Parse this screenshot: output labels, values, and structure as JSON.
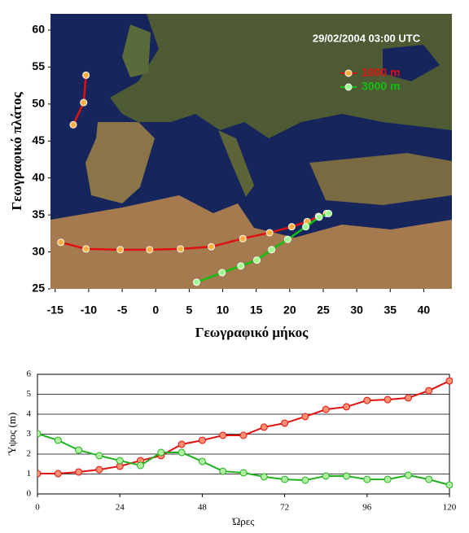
{
  "chart_data": [
    {
      "type": "line",
      "annotation": "29/02/2004 03:00 UTC",
      "xlabel": "Γεωγραφικό μήκος",
      "ylabel": "Γεωγραφικό πλάτος",
      "xlim": [
        -15.7,
        44.2
      ],
      "ylim": [
        25,
        62.2
      ],
      "xticks": [
        -15,
        -10,
        -5,
        0,
        5,
        10,
        15,
        20,
        25,
        30,
        35,
        40
      ],
      "yticks": [
        25,
        30,
        35,
        40,
        45,
        50,
        55,
        60
      ],
      "grid": false,
      "legend": "upper right",
      "series": [
        {
          "name": "1000 m",
          "color": "#e01010",
          "marker_color": "#ffb040",
          "x": [
            -10.4,
            -10.75,
            -12.3,
            null,
            -14.15,
            -10.4,
            -5.3,
            -0.9,
            3.7,
            8.3,
            13.0,
            17.0,
            20.3,
            22.6,
            24.3,
            25.5
          ],
          "values": [
            53.9,
            50.2,
            47.2,
            null,
            31.3,
            30.4,
            30.3,
            30.3,
            30.4,
            30.7,
            31.8,
            32.6,
            33.4,
            34.1,
            34.8,
            35.2
          ]
        },
        {
          "name": "3000 m",
          "color": "#10c010",
          "marker_color": "#a0ff90",
          "x": [
            25.8,
            24.4,
            22.4,
            19.7,
            17.3,
            15.1,
            12.7,
            9.9,
            6.1
          ],
          "values": [
            35.2,
            34.7,
            33.4,
            31.7,
            30.3,
            28.9,
            28.1,
            27.2,
            25.9
          ]
        }
      ]
    },
    {
      "type": "line",
      "xlabel": "Ώρες",
      "ylabel": "Ύψος (m)",
      "xlim": [
        0,
        120
      ],
      "ylim": [
        0,
        6
      ],
      "xticks": [
        0,
        24,
        48,
        72,
        96,
        120
      ],
      "yticks": [
        0,
        1,
        2,
        3,
        4,
        5,
        6
      ],
      "grid": true,
      "x": [
        0,
        6,
        12,
        18,
        24,
        30,
        36,
        42,
        48,
        54,
        60,
        66,
        72,
        78,
        84,
        90,
        96,
        102,
        108,
        114,
        120
      ],
      "series": [
        {
          "color": "#e01010",
          "marker_color": "#ff9070",
          "values": [
            1.02,
            1.02,
            1.1,
            1.22,
            1.39,
            1.67,
            1.92,
            2.49,
            2.69,
            2.94,
            2.94,
            3.35,
            3.55,
            3.88,
            4.24,
            4.37,
            4.69,
            4.73,
            4.82,
            5.18,
            5.67
          ]
        },
        {
          "color": "#20b020",
          "marker_color": "#b0f0a0",
          "values": [
            3.02,
            2.69,
            2.2,
            1.92,
            1.67,
            1.43,
            2.08,
            2.08,
            1.63,
            1.14,
            1.06,
            0.86,
            0.73,
            0.69,
            0.9,
            0.9,
            0.73,
            0.73,
            0.94,
            0.73,
            0.45
          ]
        }
      ]
    }
  ]
}
